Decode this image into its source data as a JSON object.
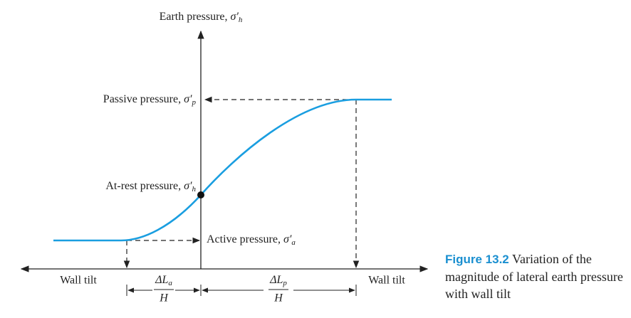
{
  "y_axis_label": {
    "text": "Earth pressure,",
    "symbol": "σ′",
    "subscript": "h"
  },
  "passive_label": {
    "text": "Passive pressure,",
    "symbol": "σ′",
    "subscript": "p"
  },
  "at_rest_label": {
    "text": "At-rest pressure,",
    "symbol": "σ′",
    "subscript": "h"
  },
  "active_label": {
    "text": "Active pressure,",
    "symbol": "σ′",
    "subscript": "a"
  },
  "left_axis_label": "Wall tilt",
  "right_axis_label": "Wall tilt",
  "active_fraction": {
    "numerator": "ΔL",
    "subscript": "a",
    "denominator": "H"
  },
  "passive_fraction": {
    "numerator": "ΔL",
    "subscript": "p",
    "denominator": "H"
  },
  "caption": {
    "label": "Figure 13.2",
    "text": "Variation of the magnitude of lateral earth pressure with wall tilt"
  }
}
